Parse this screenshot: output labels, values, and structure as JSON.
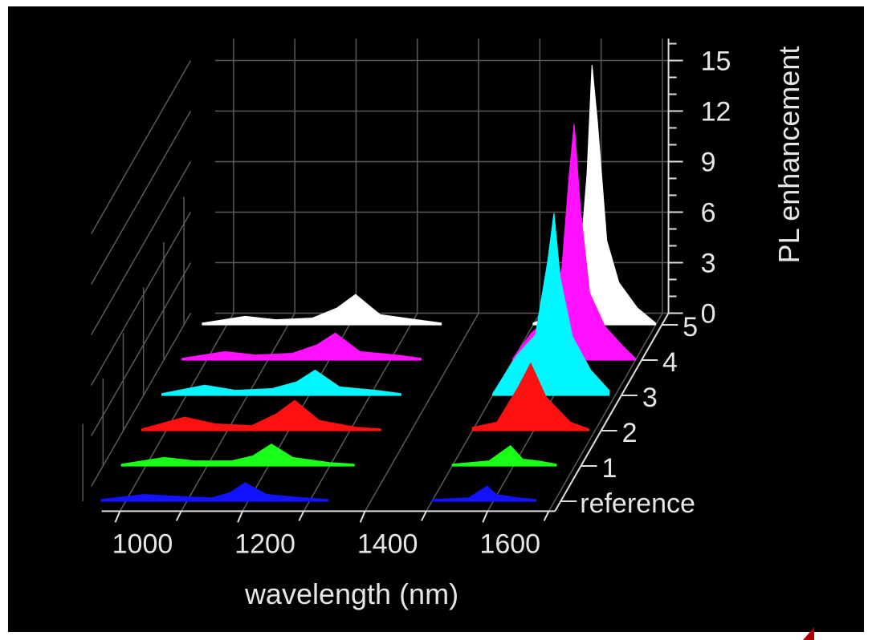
{
  "chart_data": {
    "type": "area",
    "projection": "3d-waterfall",
    "xlabel": "wavelength (nm)",
    "zlabel": "PL enhancement",
    "x_ticks": [
      1000,
      1200,
      1400,
      1600
    ],
    "z_ticks": [
      0,
      3,
      6,
      9,
      12,
      15
    ],
    "z_range": [
      0,
      16
    ],
    "grid": true,
    "series": [
      {
        "name": "reference",
        "color": "#1212ff",
        "x": [
          960,
          1030,
          1080,
          1140,
          1170,
          1195,
          1230,
          1290,
          1330,
          1500,
          1560,
          1590,
          1605,
          1640,
          1670
        ],
        "y": [
          0.1,
          0.4,
          0.3,
          0.2,
          0.5,
          1.1,
          0.4,
          0.2,
          0.1,
          0.1,
          0.2,
          0.9,
          0.4,
          0.2,
          0.1
        ]
      },
      {
        "name": "1",
        "color": "#18ff18",
        "x": [
          960,
          1030,
          1080,
          1140,
          1175,
          1205,
          1240,
          1300,
          1340,
          1500,
          1560,
          1595,
          1615,
          1640,
          1670
        ],
        "y": [
          0.1,
          0.5,
          0.3,
          0.3,
          0.6,
          1.3,
          0.5,
          0.2,
          0.1,
          0.1,
          0.3,
          1.2,
          0.4,
          0.3,
          0.1
        ]
      },
      {
        "name": "2",
        "color": "#ff1010",
        "x": [
          960,
          1030,
          1080,
          1140,
          1180,
          1210,
          1250,
          1310,
          1350,
          1500,
          1540,
          1575,
          1595,
          1620,
          1660,
          1690
        ],
        "y": [
          0.1,
          0.8,
          0.4,
          0.3,
          1.0,
          1.8,
          0.6,
          0.2,
          0.1,
          0.2,
          0.5,
          2.6,
          4.0,
          2.0,
          0.5,
          0.1
        ]
      },
      {
        "name": "3",
        "color": "#00f7ff",
        "x": [
          960,
          1030,
          1080,
          1140,
          1180,
          1210,
          1250,
          1310,
          1350,
          1500,
          1540,
          1570,
          1590,
          1600,
          1610,
          1630,
          1660,
          1690
        ],
        "y": [
          0.1,
          0.6,
          0.3,
          0.4,
          0.8,
          1.5,
          0.5,
          0.3,
          0.1,
          0.1,
          2.4,
          3.6,
          8.0,
          10.8,
          7.0,
          3.5,
          1.5,
          0.3
        ]
      },
      {
        "name": "4",
        "color": "#ff10ff",
        "x": [
          960,
          1030,
          1080,
          1140,
          1180,
          1210,
          1250,
          1310,
          1350,
          1500,
          1530,
          1560,
          1580,
          1592,
          1600,
          1610,
          1625,
          1650,
          1680,
          1700
        ],
        "y": [
          0.1,
          0.5,
          0.3,
          0.4,
          0.9,
          1.6,
          0.5,
          0.3,
          0.1,
          0.1,
          1.6,
          2.5,
          5.5,
          11.0,
          14.0,
          9.0,
          4.0,
          2.0,
          0.8,
          0.1
        ]
      },
      {
        "name": "5",
        "color": "#ffffff",
        "x": [
          960,
          1030,
          1080,
          1140,
          1180,
          1210,
          1250,
          1310,
          1350,
          1500,
          1550,
          1575,
          1588,
          1596,
          1605,
          1620,
          1640,
          1670,
          1700
        ],
        "y": [
          0.1,
          0.5,
          0.3,
          0.4,
          1.0,
          1.8,
          0.6,
          0.3,
          0.1,
          0.1,
          0.8,
          3.0,
          9.0,
          15.4,
          12.0,
          5.0,
          2.5,
          1.0,
          0.1
        ]
      }
    ]
  }
}
